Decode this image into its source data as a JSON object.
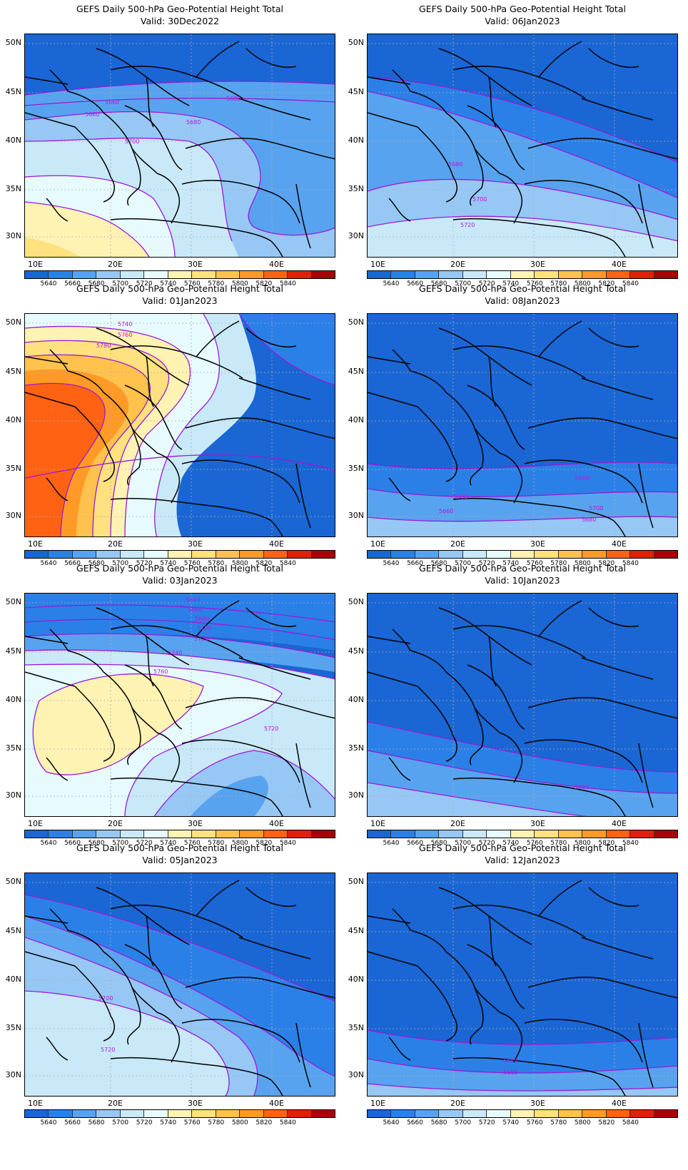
{
  "colorbar": {
    "labels": [
      "5640",
      "5660",
      "5680",
      "5700",
      "5720",
      "5740",
      "5760",
      "5780",
      "5800",
      "5820",
      "5840"
    ],
    "colors": [
      "#1a66d4",
      "#2b80e8",
      "#58a3ef",
      "#97c8f5",
      "#c9e9f8",
      "#e7fbfe",
      "#fff3b3",
      "#ffe17f",
      "#ffc24d",
      "#ff9a26",
      "#ff6212",
      "#e21f08",
      "#a80008"
    ]
  },
  "axes": {
    "lat": [
      "50N",
      "45N",
      "40N",
      "35N",
      "30N"
    ],
    "lon": [
      "10E",
      "20E",
      "30E",
      "40E"
    ]
  },
  "panels": [
    {
      "title": "GEFS Daily 500-hPa Geo-Potential Height Total",
      "valid": "Valid: 30Dec2022",
      "labels": [
        "5660",
        "5680",
        "5660",
        "5680",
        "5700"
      ]
    },
    {
      "title": "GEFS Daily 500-hPa Geo-Potential Height Total",
      "valid": "Valid: 06Jan2023",
      "labels": [
        "5680",
        "5700",
        "5720"
      ]
    },
    {
      "title": "GEFS Daily 500-hPa Geo-Potential Height Total",
      "valid": "Valid: 01Jan2023",
      "labels": [
        "5740",
        "5760",
        "5780"
      ]
    },
    {
      "title": "GEFS Daily 500-hPa Geo-Potential Height Total",
      "valid": "Valid: 08Jan2023",
      "labels": [
        "5660",
        "5680",
        "5700",
        "5660",
        "5680"
      ]
    },
    {
      "title": "GEFS Daily 500-hPa Geo-Potential Height Total",
      "valid": "Valid: 03Jan2023",
      "labels": [
        "5640",
        "5660",
        "5680",
        "5700",
        "5720",
        "5740",
        "5760",
        "5720"
      ]
    },
    {
      "title": "GEFS Daily 500-hPa Geo-Potential Height Total",
      "valid": "Valid: 10Jan2023",
      "labels": [
        "5660"
      ]
    },
    {
      "title": "GEFS Daily 500-hPa Geo-Potential Height Total",
      "valid": "Valid: 05Jan2023",
      "labels": [
        "5700",
        "5720"
      ]
    },
    {
      "title": "GEFS Daily 500-hPa Geo-Potential Height Total",
      "valid": "Valid: 12Jan2023",
      "labels": [
        "5660",
        "5660"
      ]
    }
  ]
}
